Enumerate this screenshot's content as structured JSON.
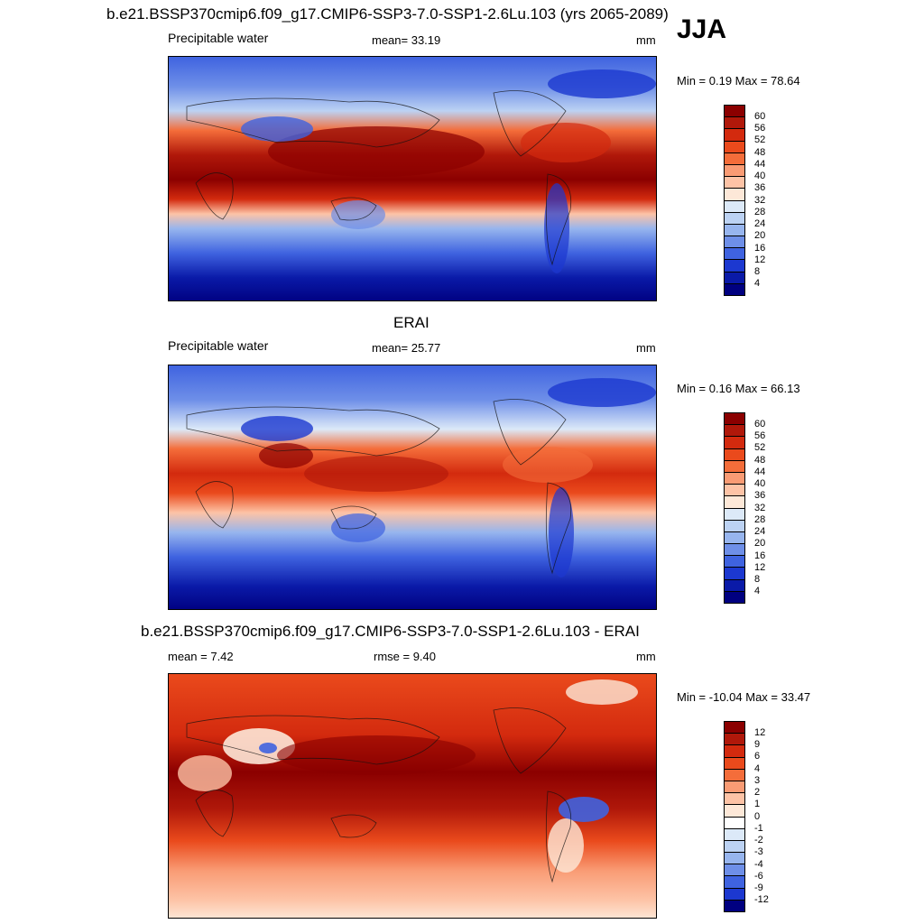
{
  "season": "JJA",
  "units": "mm",
  "panels": [
    {
      "id": "model",
      "title": "b.e21.BSSP370cmip6.f09_g17.CMIP6-SSP3-7.0-SSP1-2.6Lu.103 (yrs 2065-2089)",
      "variable": "Precipitable water",
      "mean_text": "mean=  33.19",
      "units": "mm",
      "minmax_text": "Min =   0.19 Max =  78.64",
      "colorbar": {
        "labels": [
          "60",
          "56",
          "52",
          "48",
          "44",
          "40",
          "36",
          "32",
          "28",
          "24",
          "20",
          "16",
          "12",
          "8",
          "4"
        ],
        "colors": [
          "#8b0000",
          "#b0180a",
          "#d32a0e",
          "#ea4a1c",
          "#f46d3a",
          "#f99b74",
          "#fdc3a6",
          "#fde8d8",
          "#dce9f8",
          "#bcd2f3",
          "#97b5ee",
          "#6e8fe8",
          "#3f63e0",
          "#1c38d0",
          "#0a1aa8",
          "#000080"
        ]
      }
    },
    {
      "id": "obs",
      "title": "ERAI",
      "variable": "Precipitable water",
      "mean_text": "mean=  25.77",
      "units": "mm",
      "minmax_text": "Min =   0.16 Max =  66.13",
      "colorbar": {
        "labels": [
          "60",
          "56",
          "52",
          "48",
          "44",
          "40",
          "36",
          "32",
          "28",
          "24",
          "20",
          "16",
          "12",
          "8",
          "4"
        ],
        "colors": [
          "#8b0000",
          "#b0180a",
          "#d32a0e",
          "#ea4a1c",
          "#f46d3a",
          "#f99b74",
          "#fdc3a6",
          "#fde8d8",
          "#dce9f8",
          "#bcd2f3",
          "#97b5ee",
          "#6e8fe8",
          "#3f63e0",
          "#1c38d0",
          "#0a1aa8",
          "#000080"
        ]
      }
    },
    {
      "id": "diff",
      "title": "b.e21.BSSP370cmip6.f09_g17.CMIP6-SSP3-7.0-SSP1-2.6Lu.103 - ERAI",
      "mean_text": "mean =   7.42",
      "rmse_text": "rmse =   9.40",
      "units": "mm",
      "minmax_text": "Min = -10.04 Max =  33.47",
      "colorbar": {
        "labels": [
          "12",
          "9",
          "6",
          "4",
          "3",
          "2",
          "1",
          "0",
          "-1",
          "-2",
          "-3",
          "-4",
          "-6",
          "-9",
          "-12"
        ],
        "colors": [
          "#8b0000",
          "#b0180a",
          "#d32a0e",
          "#ea4a1c",
          "#f46d3a",
          "#f99b74",
          "#fdc3a6",
          "#fde8d8",
          "#ffffff",
          "#dce9f8",
          "#bcd2f3",
          "#97b5ee",
          "#6e8fe8",
          "#3f63e0",
          "#1c38d0",
          "#000080"
        ]
      }
    }
  ]
}
